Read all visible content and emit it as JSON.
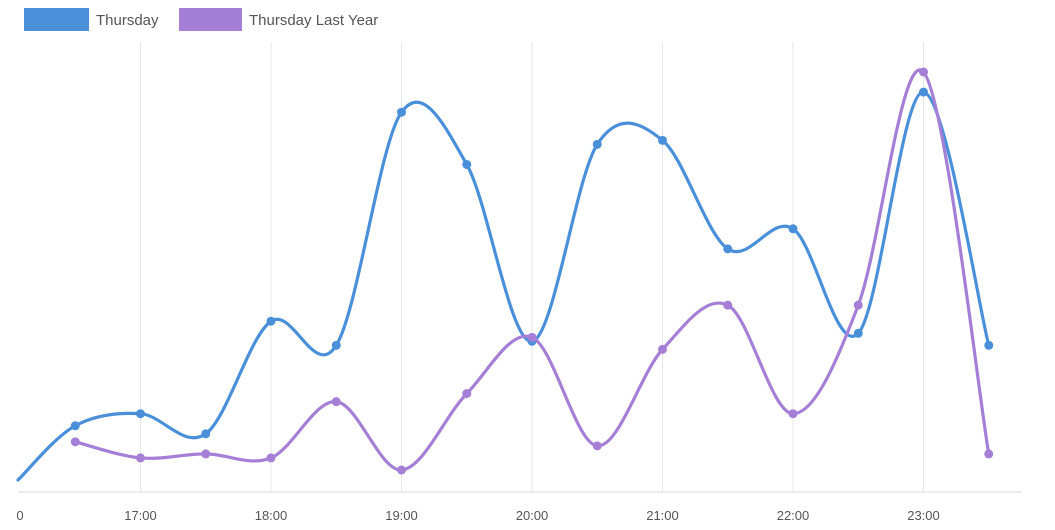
{
  "chart_data": {
    "type": "line",
    "x_tick_labels": [
      "0",
      "17:00",
      "18:00",
      "19:00",
      "20:00",
      "21:00",
      "22:00",
      "23:00"
    ],
    "x": [
      16.0,
      16.5,
      17.0,
      17.5,
      18.0,
      18.5,
      19.0,
      19.5,
      20.0,
      20.5,
      21.0,
      21.5,
      22.0,
      22.5,
      23.0,
      23.5
    ],
    "xlim": [
      16.0,
      23.75
    ],
    "ylim": [
      0,
      100
    ],
    "grid": {
      "vertical": true,
      "horizontal": false
    },
    "legend": {
      "position": "top-left"
    },
    "series": [
      {
        "name": "Thursday",
        "color": "#4a90d9",
        "values": [
          null,
          12,
          15,
          10,
          38,
          32,
          90,
          77,
          33,
          82,
          83,
          56,
          61,
          35,
          95,
          32
        ]
      },
      {
        "name": "Thursday Last Year",
        "color": "#a57fd6",
        "values": [
          null,
          8,
          4,
          5,
          4,
          18,
          1,
          20,
          34,
          7,
          31,
          42,
          15,
          42,
          100,
          5
        ]
      }
    ]
  }
}
